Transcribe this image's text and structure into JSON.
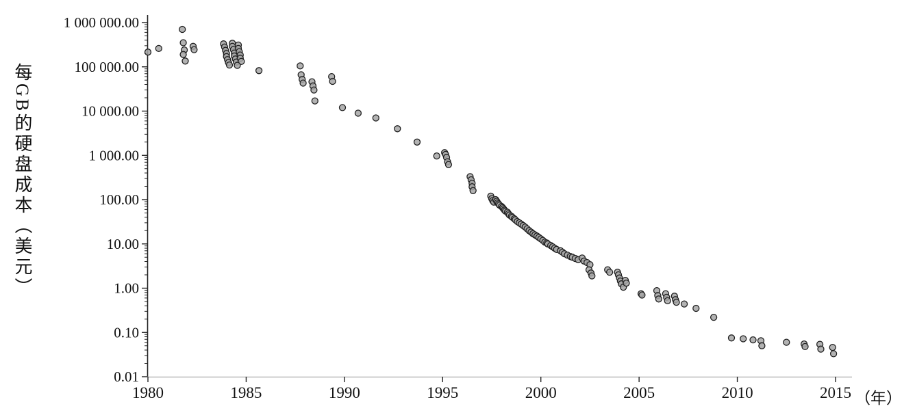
{
  "chart_data": {
    "type": "scatter",
    "title": "",
    "ylabel": "每GB的硬盘成本（美元）",
    "xlabel_unit": "（年）",
    "y_scale": "log",
    "grid": false,
    "legend": "none",
    "x_range": [
      1980,
      2015
    ],
    "y_range": [
      0.01,
      1000000
    ],
    "x_ticks": [
      1980,
      1985,
      1990,
      1995,
      2000,
      2005,
      2010,
      2015
    ],
    "y_ticks": [
      1000000,
      100000,
      10000,
      1000,
      100,
      10,
      1,
      0.1,
      0.01
    ],
    "y_tick_labels": [
      "1 000 000.00",
      "100 000.00",
      "10 000.00",
      "1 000.00",
      "100.00",
      "10.00",
      "1.00",
      "0.10",
      "0.01"
    ],
    "marker": {
      "shape": "circle",
      "fill": "#a6a6a6",
      "stroke": "#1f1f1f",
      "radius": 4.5
    },
    "points": [
      [
        1980.0,
        215000
      ],
      [
        1980.55,
        260000
      ],
      [
        1981.75,
        700000
      ],
      [
        1981.8,
        350000
      ],
      [
        1981.85,
        240000
      ],
      [
        1981.8,
        190000
      ],
      [
        1981.9,
        135000
      ],
      [
        1982.3,
        290000
      ],
      [
        1982.35,
        245000
      ],
      [
        1983.85,
        330000
      ],
      [
        1983.9,
        280000
      ],
      [
        1983.95,
        235000
      ],
      [
        1984.0,
        200000
      ],
      [
        1984.0,
        170000
      ],
      [
        1984.05,
        145000
      ],
      [
        1984.1,
        125000
      ],
      [
        1984.15,
        110000
      ],
      [
        1984.3,
        340000
      ],
      [
        1984.3,
        290000
      ],
      [
        1984.35,
        245000
      ],
      [
        1984.4,
        205000
      ],
      [
        1984.4,
        175000
      ],
      [
        1984.45,
        150000
      ],
      [
        1984.5,
        128000
      ],
      [
        1984.6,
        310000
      ],
      [
        1984.6,
        260000
      ],
      [
        1984.65,
        220000
      ],
      [
        1984.7,
        185000
      ],
      [
        1984.7,
        155000
      ],
      [
        1984.75,
        132000
      ],
      [
        1984.55,
        108000
      ],
      [
        1985.65,
        82000
      ],
      [
        1987.75,
        105000
      ],
      [
        1987.8,
        66000
      ],
      [
        1987.85,
        52000
      ],
      [
        1987.9,
        43000
      ],
      [
        1988.35,
        46000
      ],
      [
        1988.4,
        37000
      ],
      [
        1988.45,
        30000
      ],
      [
        1988.5,
        17000
      ],
      [
        1989.35,
        60000
      ],
      [
        1989.4,
        47000
      ],
      [
        1989.9,
        12000
      ],
      [
        1990.7,
        9000
      ],
      [
        1991.6,
        7000
      ],
      [
        1992.7,
        4000
      ],
      [
        1993.7,
        2000
      ],
      [
        1994.7,
        970
      ],
      [
        1995.1,
        1150
      ],
      [
        1995.15,
        1050
      ],
      [
        1995.2,
        900
      ],
      [
        1995.25,
        720
      ],
      [
        1995.3,
        620
      ],
      [
        1996.4,
        330
      ],
      [
        1996.45,
        280
      ],
      [
        1996.5,
        235
      ],
      [
        1996.5,
        195
      ],
      [
        1996.55,
        160
      ],
      [
        1997.45,
        120
      ],
      [
        1997.5,
        105
      ],
      [
        1997.55,
        95
      ],
      [
        1997.6,
        88
      ],
      [
        1997.7,
        100
      ],
      [
        1997.75,
        92
      ],
      [
        1997.8,
        85
      ],
      [
        1997.85,
        80
      ],
      [
        1997.9,
        75
      ],
      [
        1998.0,
        70
      ],
      [
        1998.05,
        66
      ],
      [
        1998.1,
        62
      ],
      [
        1998.15,
        58
      ],
      [
        1998.2,
        55
      ],
      [
        1998.3,
        52
      ],
      [
        1998.35,
        48
      ],
      [
        1998.4,
        45
      ],
      [
        1998.5,
        42
      ],
      [
        1998.55,
        40
      ],
      [
        1998.65,
        37
      ],
      [
        1998.7,
        35
      ],
      [
        1998.8,
        32
      ],
      [
        1998.9,
        30
      ],
      [
        1999.0,
        28
      ],
      [
        1999.1,
        26
      ],
      [
        1999.2,
        24
      ],
      [
        1999.3,
        22
      ],
      [
        1999.4,
        20
      ],
      [
        1999.5,
        18.5
      ],
      [
        1999.6,
        17
      ],
      [
        1999.7,
        16
      ],
      [
        1999.8,
        15
      ],
      [
        1999.9,
        14
      ],
      [
        2000.0,
        13
      ],
      [
        2000.1,
        12
      ],
      [
        2000.2,
        11
      ],
      [
        2000.3,
        10.5
      ],
      [
        2000.35,
        10
      ],
      [
        2000.5,
        9.2
      ],
      [
        2000.6,
        8.6
      ],
      [
        2000.7,
        8.0
      ],
      [
        2000.8,
        7.5
      ],
      [
        2001.0,
        7.0
      ],
      [
        2001.1,
        6.5
      ],
      [
        2001.2,
        6.0
      ],
      [
        2001.35,
        5.6
      ],
      [
        2001.5,
        5.2
      ],
      [
        2001.6,
        5.0
      ],
      [
        2001.75,
        4.7
      ],
      [
        2001.9,
        4.4
      ],
      [
        2002.1,
        4.8
      ],
      [
        2002.2,
        4.1
      ],
      [
        2002.35,
        3.8
      ],
      [
        2002.5,
        3.4
      ],
      [
        2002.45,
        2.6
      ],
      [
        2002.55,
        2.2
      ],
      [
        2002.6,
        1.9
      ],
      [
        2003.4,
        2.6
      ],
      [
        2003.5,
        2.3
      ],
      [
        2003.9,
        2.3
      ],
      [
        2003.95,
        2.0
      ],
      [
        2004.0,
        1.7
      ],
      [
        2004.05,
        1.45
      ],
      [
        2004.1,
        1.25
      ],
      [
        2004.2,
        1.05
      ],
      [
        2004.3,
        1.5
      ],
      [
        2004.35,
        1.3
      ],
      [
        2005.1,
        0.75
      ],
      [
        2005.15,
        0.7
      ],
      [
        2005.9,
        0.88
      ],
      [
        2005.95,
        0.68
      ],
      [
        2006.0,
        0.57
      ],
      [
        2006.35,
        0.75
      ],
      [
        2006.4,
        0.62
      ],
      [
        2006.45,
        0.52
      ],
      [
        2006.8,
        0.66
      ],
      [
        2006.85,
        0.55
      ],
      [
        2006.9,
        0.48
      ],
      [
        2007.3,
        0.44
      ],
      [
        2007.9,
        0.35
      ],
      [
        2008.8,
        0.22
      ],
      [
        2009.7,
        0.075
      ],
      [
        2010.3,
        0.072
      ],
      [
        2010.8,
        0.068
      ],
      [
        2011.2,
        0.065
      ],
      [
        2011.25,
        0.05
      ],
      [
        2012.5,
        0.06
      ],
      [
        2013.4,
        0.055
      ],
      [
        2013.45,
        0.048
      ],
      [
        2014.2,
        0.054
      ],
      [
        2014.25,
        0.042
      ],
      [
        2014.85,
        0.046
      ],
      [
        2014.9,
        0.033
      ]
    ],
    "colors": {
      "axis": "#222222",
      "x_axis_line": "#b9b9b9",
      "text": "#111111"
    }
  }
}
